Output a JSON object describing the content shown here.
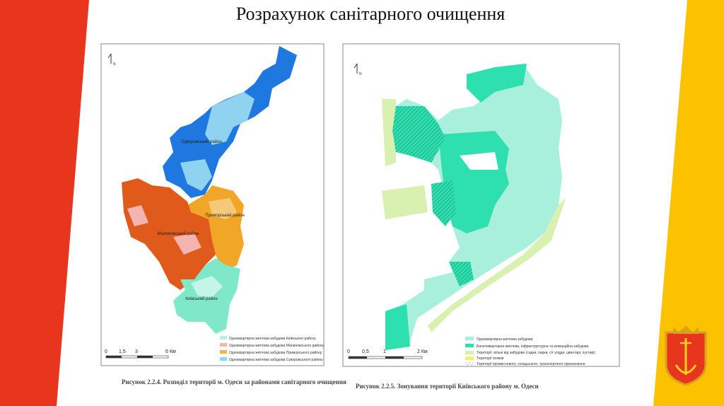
{
  "title": "Розрахунок санітарного очищення",
  "left_map": {
    "north": "N",
    "labels": [
      "Суворовський район",
      "Приморський район",
      "Малиновський район",
      "Київський район"
    ],
    "legend": [
      "Одноквартирна житлова забудова Київського району",
      "Одноквартирна житлова забудова Малиновського району",
      "Одноквартирна житлова забудова Приморського району",
      "Одноквартирна житлова забудова Суворовського району"
    ],
    "scale": [
      "0",
      "1,5",
      "3",
      "6 Км"
    ],
    "caption": "Рисунок 2.2.4. Розподіл території м. Одеси за районами санітарного очищення"
  },
  "right_map": {
    "north": "N",
    "legend": [
      "Одноквартирна житлова забудова",
      "Багатоквартирна житлова, інфраструктурна та комерційна забудова",
      "Території, вільні від забудови (садки, парки, с/г угіддя, цвинтарі, пустирі)",
      "Території пляжів",
      "Території промислового, складського, транспортного призначення"
    ],
    "scale": [
      "0",
      "0,5",
      "1",
      "2 Км"
    ],
    "caption": "Рисунок 2.2.5. Зонування території Київського району м. Одеси"
  }
}
